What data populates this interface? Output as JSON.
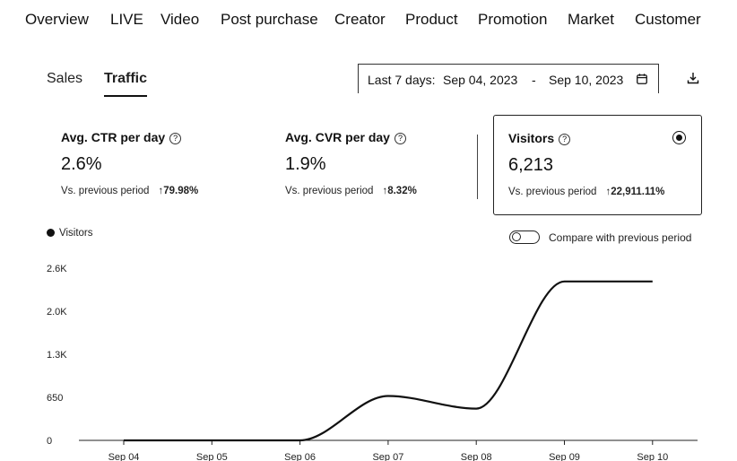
{
  "nav": {
    "items": [
      "Overview",
      "LIVE",
      "Video",
      "Post purchase",
      "Creator",
      "Product",
      "Promotion",
      "Market",
      "Customer"
    ]
  },
  "subtabs": {
    "sales": "Sales",
    "traffic": "Traffic",
    "active": "Traffic"
  },
  "date_range": {
    "preset": "Last 7 days:",
    "start": "Sep 04, 2023",
    "separator": "-",
    "end": "Sep 10, 2023",
    "icon": "calendar-icon"
  },
  "download": {
    "icon": "download-icon"
  },
  "cards": [
    {
      "label": "Avg. CTR per day",
      "value": "2.6%",
      "compare_label": "Vs. previous period",
      "change": "79.98%",
      "selected": false
    },
    {
      "label": "Avg. CVR per day",
      "value": "1.9%",
      "compare_label": "Vs. previous period",
      "change": "8.32%",
      "selected": false
    },
    {
      "label": "Visitors",
      "value": "6,213",
      "compare_label": "Vs. previous period",
      "change": "22,911.11%",
      "selected": true
    }
  ],
  "help_glyph": "?",
  "change_arrow": "↑",
  "legend": {
    "label": "Visitors"
  },
  "compare_toggle": {
    "label": "Compare with previous period",
    "on": false
  },
  "colors": {
    "line": "#111111",
    "axis": "#222222"
  },
  "chart_data": {
    "type": "line",
    "x": [
      "Sep 04",
      "Sep 05",
      "Sep 06",
      "Sep 07",
      "Sep 08",
      "Sep 09",
      "Sep 10"
    ],
    "y_ticks": [
      "0",
      "650",
      "1.3K",
      "2.0K",
      "2.6K"
    ],
    "ylim": [
      0,
      2600
    ],
    "series": [
      {
        "name": "Visitors",
        "values": [
          0,
          0,
          0,
          670,
          480,
          2400,
          2400
        ]
      }
    ]
  }
}
